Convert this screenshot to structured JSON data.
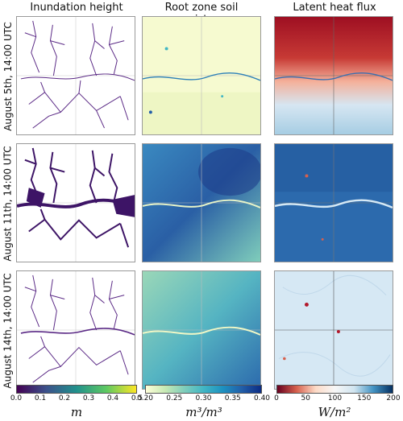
{
  "columns": [
    {
      "title": "Inundation height"
    },
    {
      "title": "Root zone soil moisture"
    },
    {
      "title": "Latent heat flux"
    }
  ],
  "rows": [
    {
      "label": "August 5th, 14:00 UTC"
    },
    {
      "label": "August 11th, 14:00 UTC"
    },
    {
      "label": "August 14th, 14:00 UTC"
    }
  ],
  "colorbars": [
    {
      "unit": "m",
      "ticks": [
        "0.0",
        "0.1",
        "0.2",
        "0.3",
        "0.4",
        "0.5"
      ],
      "colors": [
        "#440154",
        "#3b528b",
        "#21918c",
        "#5ec962",
        "#fde725"
      ]
    },
    {
      "unit": "m³/m³",
      "ticks": [
        "0.20",
        "0.25",
        "0.30",
        "0.35",
        "0.40"
      ],
      "colors": [
        "#ffffd9",
        "#c7e9b4",
        "#7fcdbb",
        "#41b6c4",
        "#1d91c0",
        "#225ea8",
        "#0c2c84"
      ]
    },
    {
      "unit": "W/m²",
      "ticks": [
        "0",
        "50",
        "100",
        "150",
        "200"
      ],
      "colors": [
        "#67001f",
        "#d6604d",
        "#fddbc7",
        "#f7f7f7",
        "#d1e5f0",
        "#4393c3",
        "#053061"
      ]
    }
  ]
}
